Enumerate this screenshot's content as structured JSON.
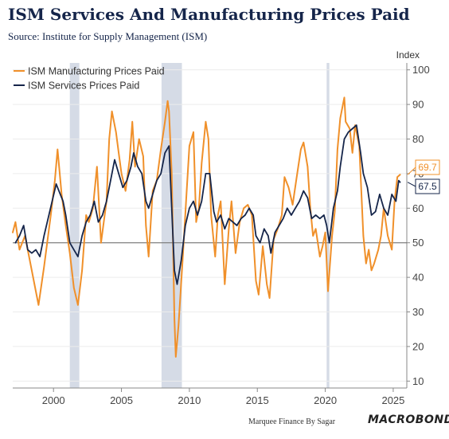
{
  "title": "ISM Services And Manufacturing Prices Paid",
  "subtitle": "Source: Institute for Supply Management (ISM)",
  "footer": {
    "credit": "Marquee Finance By Sagar",
    "brand": "MACROBOND"
  },
  "colors": {
    "manufacturing": "#f0902a",
    "services": "#15254a",
    "recession": "#d5dbe6",
    "grid": "#ececec",
    "axis": "#888888",
    "reference_line": "#666666"
  },
  "chart_data": {
    "type": "line",
    "ylabel": "Index",
    "ylim": [
      8,
      102
    ],
    "xlim": [
      1997.0,
      2026.0
    ],
    "y_ticks": [
      10,
      20,
      30,
      40,
      50,
      60,
      70,
      80,
      90,
      100
    ],
    "x_ticks": [
      2000,
      2005,
      2010,
      2015,
      2020,
      2025
    ],
    "reference_line": 50,
    "legend_position": "top-left",
    "recessions": [
      [
        2001.2,
        2001.9
      ],
      [
        2007.95,
        2009.45
      ],
      [
        2020.1,
        2020.3
      ]
    ],
    "end_labels": [
      "69.7",
      "67.5"
    ],
    "series": [
      {
        "name": "ISM Manufacturing Prices Paid",
        "color": "#f0902a",
        "last_value": 69.7,
        "points": [
          [
            1997.0,
            53
          ],
          [
            1997.2,
            56
          ],
          [
            1997.5,
            48
          ],
          [
            1997.9,
            52
          ],
          [
            1998.3,
            44
          ],
          [
            1998.7,
            36
          ],
          [
            1998.9,
            32
          ],
          [
            1999.3,
            43
          ],
          [
            1999.8,
            58
          ],
          [
            2000.1,
            68
          ],
          [
            2000.3,
            77
          ],
          [
            2000.6,
            64
          ],
          [
            2000.9,
            55
          ],
          [
            2001.2,
            47
          ],
          [
            2001.5,
            37
          ],
          [
            2001.8,
            32
          ],
          [
            2002.1,
            42
          ],
          [
            2002.4,
            58
          ],
          [
            2002.6,
            56
          ],
          [
            2002.9,
            60
          ],
          [
            2003.2,
            72
          ],
          [
            2003.5,
            50
          ],
          [
            2003.9,
            62
          ],
          [
            2004.1,
            80
          ],
          [
            2004.3,
            88
          ],
          [
            2004.6,
            82
          ],
          [
            2004.8,
            76
          ],
          [
            2005.0,
            70
          ],
          [
            2005.3,
            65
          ],
          [
            2005.6,
            74
          ],
          [
            2005.8,
            85
          ],
          [
            2006.0,
            72
          ],
          [
            2006.3,
            80
          ],
          [
            2006.6,
            75
          ],
          [
            2006.8,
            55
          ],
          [
            2007.0,
            46
          ],
          [
            2007.3,
            65
          ],
          [
            2007.6,
            68
          ],
          [
            2007.9,
            77
          ],
          [
            2008.2,
            85
          ],
          [
            2008.4,
            91
          ],
          [
            2008.5,
            88
          ],
          [
            2008.7,
            70
          ],
          [
            2008.9,
            28
          ],
          [
            2009.0,
            17
          ],
          [
            2009.2,
            26
          ],
          [
            2009.5,
            45
          ],
          [
            2009.8,
            65
          ],
          [
            2010.0,
            78
          ],
          [
            2010.3,
            82
          ],
          [
            2010.5,
            56
          ],
          [
            2010.7,
            60
          ],
          [
            2010.9,
            73
          ],
          [
            2011.2,
            85
          ],
          [
            2011.4,
            80
          ],
          [
            2011.6,
            58
          ],
          [
            2011.9,
            46
          ],
          [
            2012.1,
            58
          ],
          [
            2012.3,
            62
          ],
          [
            2012.6,
            38
          ],
          [
            2012.9,
            54
          ],
          [
            2013.1,
            62
          ],
          [
            2013.4,
            47
          ],
          [
            2013.7,
            56
          ],
          [
            2014.0,
            60
          ],
          [
            2014.3,
            61
          ],
          [
            2014.6,
            58
          ],
          [
            2014.9,
            39
          ],
          [
            2015.1,
            35
          ],
          [
            2015.4,
            49
          ],
          [
            2015.7,
            38
          ],
          [
            2015.9,
            34
          ],
          [
            2016.2,
            51
          ],
          [
            2016.5,
            54
          ],
          [
            2016.8,
            58
          ],
          [
            2017.0,
            69
          ],
          [
            2017.3,
            66
          ],
          [
            2017.6,
            61
          ],
          [
            2017.9,
            69
          ],
          [
            2018.2,
            77
          ],
          [
            2018.4,
            79
          ],
          [
            2018.7,
            72
          ],
          [
            2018.9,
            60
          ],
          [
            2019.1,
            52
          ],
          [
            2019.3,
            54
          ],
          [
            2019.6,
            46
          ],
          [
            2019.8,
            49
          ],
          [
            2020.0,
            53
          ],
          [
            2020.2,
            36
          ],
          [
            2020.5,
            52
          ],
          [
            2020.7,
            59
          ],
          [
            2020.9,
            77
          ],
          [
            2021.1,
            86
          ],
          [
            2021.4,
            92
          ],
          [
            2021.5,
            85
          ],
          [
            2021.8,
            83
          ],
          [
            2022.0,
            76
          ],
          [
            2022.2,
            84
          ],
          [
            2022.5,
            78
          ],
          [
            2022.8,
            52
          ],
          [
            2023.0,
            44
          ],
          [
            2023.2,
            48
          ],
          [
            2023.4,
            42
          ],
          [
            2023.6,
            44
          ],
          [
            2023.9,
            48
          ],
          [
            2024.1,
            52
          ],
          [
            2024.3,
            60
          ],
          [
            2024.6,
            52
          ],
          [
            2024.9,
            48
          ],
          [
            2025.1,
            62
          ],
          [
            2025.3,
            69
          ],
          [
            2025.5,
            69.7
          ]
        ]
      },
      {
        "name": "ISM Services Prices Paid",
        "color": "#15254a",
        "last_value": 67.5,
        "points": [
          [
            1997.2,
            50
          ],
          [
            1997.5,
            52
          ],
          [
            1997.8,
            55
          ],
          [
            1998.1,
            48
          ],
          [
            1998.4,
            47
          ],
          [
            1998.7,
            48
          ],
          [
            1999.0,
            46
          ],
          [
            1999.3,
            52
          ],
          [
            1999.6,
            57
          ],
          [
            1999.9,
            62
          ],
          [
            2000.2,
            67
          ],
          [
            2000.4,
            65
          ],
          [
            2000.7,
            62
          ],
          [
            2000.9,
            58
          ],
          [
            2001.2,
            50
          ],
          [
            2001.5,
            48
          ],
          [
            2001.8,
            46
          ],
          [
            2002.1,
            52
          ],
          [
            2002.4,
            56
          ],
          [
            2002.7,
            58
          ],
          [
            2003.0,
            62
          ],
          [
            2003.3,
            56
          ],
          [
            2003.6,
            58
          ],
          [
            2003.9,
            62
          ],
          [
            2004.2,
            68
          ],
          [
            2004.5,
            74
          ],
          [
            2004.8,
            70
          ],
          [
            2005.1,
            66
          ],
          [
            2005.4,
            68
          ],
          [
            2005.7,
            72
          ],
          [
            2005.9,
            76
          ],
          [
            2006.2,
            72
          ],
          [
            2006.5,
            70
          ],
          [
            2006.8,
            62
          ],
          [
            2007.0,
            60
          ],
          [
            2007.3,
            64
          ],
          [
            2007.6,
            68
          ],
          [
            2007.9,
            70
          ],
          [
            2008.2,
            76
          ],
          [
            2008.5,
            78
          ],
          [
            2008.7,
            60
          ],
          [
            2008.9,
            42
          ],
          [
            2009.1,
            38
          ],
          [
            2009.4,
            45
          ],
          [
            2009.7,
            55
          ],
          [
            2010.0,
            60
          ],
          [
            2010.3,
            62
          ],
          [
            2010.6,
            58
          ],
          [
            2010.9,
            62
          ],
          [
            2011.2,
            70
          ],
          [
            2011.5,
            70
          ],
          [
            2011.8,
            59
          ],
          [
            2012.0,
            56
          ],
          [
            2012.3,
            58
          ],
          [
            2012.6,
            54
          ],
          [
            2012.9,
            57
          ],
          [
            2013.2,
            56
          ],
          [
            2013.5,
            55
          ],
          [
            2013.8,
            57
          ],
          [
            2014.1,
            58
          ],
          [
            2014.4,
            60
          ],
          [
            2014.7,
            58
          ],
          [
            2014.9,
            52
          ],
          [
            2015.2,
            50
          ],
          [
            2015.5,
            54
          ],
          [
            2015.8,
            52
          ],
          [
            2016.0,
            47
          ],
          [
            2016.3,
            53
          ],
          [
            2016.6,
            55
          ],
          [
            2016.9,
            57
          ],
          [
            2017.2,
            60
          ],
          [
            2017.5,
            58
          ],
          [
            2017.8,
            60
          ],
          [
            2018.1,
            62
          ],
          [
            2018.4,
            65
          ],
          [
            2018.7,
            63
          ],
          [
            2019.0,
            57
          ],
          [
            2019.3,
            58
          ],
          [
            2019.6,
            57
          ],
          [
            2019.9,
            58
          ],
          [
            2020.1,
            55
          ],
          [
            2020.3,
            50
          ],
          [
            2020.6,
            60
          ],
          [
            2020.9,
            65
          ],
          [
            2021.1,
            72
          ],
          [
            2021.4,
            80
          ],
          [
            2021.7,
            82
          ],
          [
            2022.0,
            83
          ],
          [
            2022.3,
            84
          ],
          [
            2022.6,
            76
          ],
          [
            2022.8,
            70
          ],
          [
            2023.1,
            66
          ],
          [
            2023.4,
            58
          ],
          [
            2023.7,
            59
          ],
          [
            2024.0,
            64
          ],
          [
            2024.3,
            60
          ],
          [
            2024.6,
            58
          ],
          [
            2024.9,
            64
          ],
          [
            2025.2,
            62
          ],
          [
            2025.4,
            68
          ],
          [
            2025.5,
            67.5
          ]
        ]
      }
    ]
  }
}
